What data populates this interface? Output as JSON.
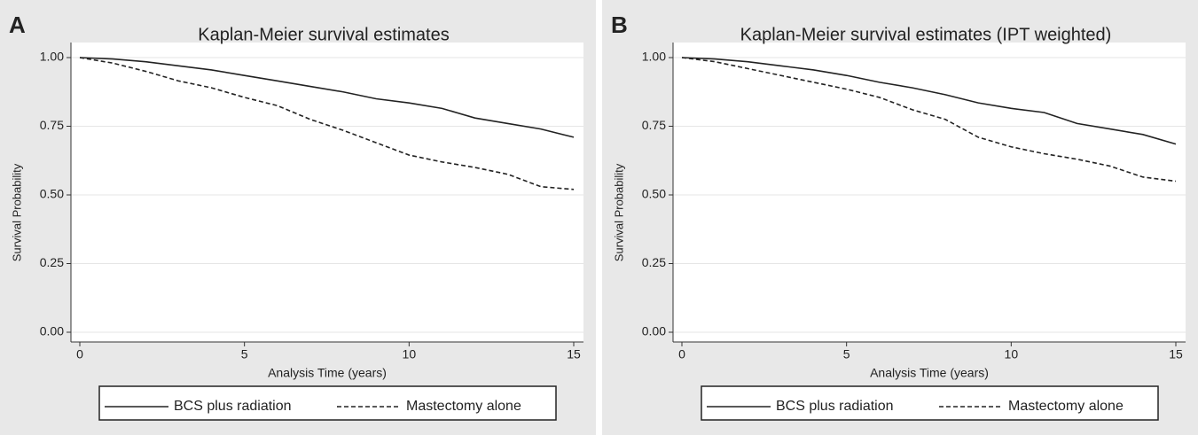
{
  "chart_data": [
    {
      "type": "line",
      "panel_label": "A",
      "title": "Kaplan-Meier survival estimates",
      "xlabel": "Analysis Time (years)",
      "ylabel": "Survival Probability",
      "x": [
        0,
        1,
        2,
        3,
        4,
        5,
        6,
        7,
        8,
        9,
        10,
        11,
        12,
        13,
        14,
        15
      ],
      "xlim": [
        0,
        15
      ],
      "xticks": [
        0,
        5,
        10,
        15
      ],
      "ylim": [
        0,
        1
      ],
      "yticks": [
        {
          "value": 0,
          "label": "0.00"
        },
        {
          "value": 0.25,
          "label": "0.25"
        },
        {
          "value": 0.5,
          "label": "0.50"
        },
        {
          "value": 0.75,
          "label": "0.75"
        },
        {
          "value": 1,
          "label": "1.00"
        }
      ],
      "grid": true,
      "legend": "bottom",
      "series": [
        {
          "name": "BCS plus radiation",
          "color": "#222222",
          "dash": "solid",
          "values": [
            1.0,
            0.995,
            0.985,
            0.97,
            0.955,
            0.935,
            0.915,
            0.895,
            0.875,
            0.85,
            0.835,
            0.815,
            0.78,
            0.76,
            0.74,
            0.71
          ]
        },
        {
          "name": "Mastectomy alone",
          "color": "#222222",
          "dash": "dashed",
          "values": [
            1.0,
            0.98,
            0.95,
            0.915,
            0.89,
            0.855,
            0.825,
            0.775,
            0.735,
            0.69,
            0.645,
            0.62,
            0.6,
            0.575,
            0.53,
            0.52
          ]
        }
      ]
    },
    {
      "type": "line",
      "panel_label": "B",
      "title": "Kaplan-Meier survival estimates (IPT weighted)",
      "xlabel": "Analysis Time (years)",
      "ylabel": "Survival Probability",
      "x": [
        0,
        1,
        2,
        3,
        4,
        5,
        6,
        7,
        8,
        9,
        10,
        11,
        12,
        13,
        14,
        15
      ],
      "xlim": [
        0,
        15
      ],
      "xticks": [
        0,
        5,
        10,
        15
      ],
      "ylim": [
        0,
        1
      ],
      "yticks": [
        {
          "value": 0,
          "label": "0.00"
        },
        {
          "value": 0.25,
          "label": "0.25"
        },
        {
          "value": 0.5,
          "label": "0.50"
        },
        {
          "value": 0.75,
          "label": "0.75"
        },
        {
          "value": 1,
          "label": "1.00"
        }
      ],
      "grid": true,
      "legend": "bottom",
      "series": [
        {
          "name": "BCS plus radiation",
          "color": "#222222",
          "dash": "solid",
          "values": [
            1.0,
            0.995,
            0.985,
            0.97,
            0.955,
            0.935,
            0.91,
            0.89,
            0.865,
            0.835,
            0.815,
            0.8,
            0.76,
            0.74,
            0.72,
            0.685
          ]
        },
        {
          "name": "Mastectomy alone",
          "color": "#222222",
          "dash": "dashed",
          "values": [
            1.0,
            0.985,
            0.96,
            0.935,
            0.91,
            0.885,
            0.855,
            0.81,
            0.775,
            0.71,
            0.675,
            0.65,
            0.63,
            0.605,
            0.565,
            0.55
          ]
        }
      ]
    }
  ]
}
